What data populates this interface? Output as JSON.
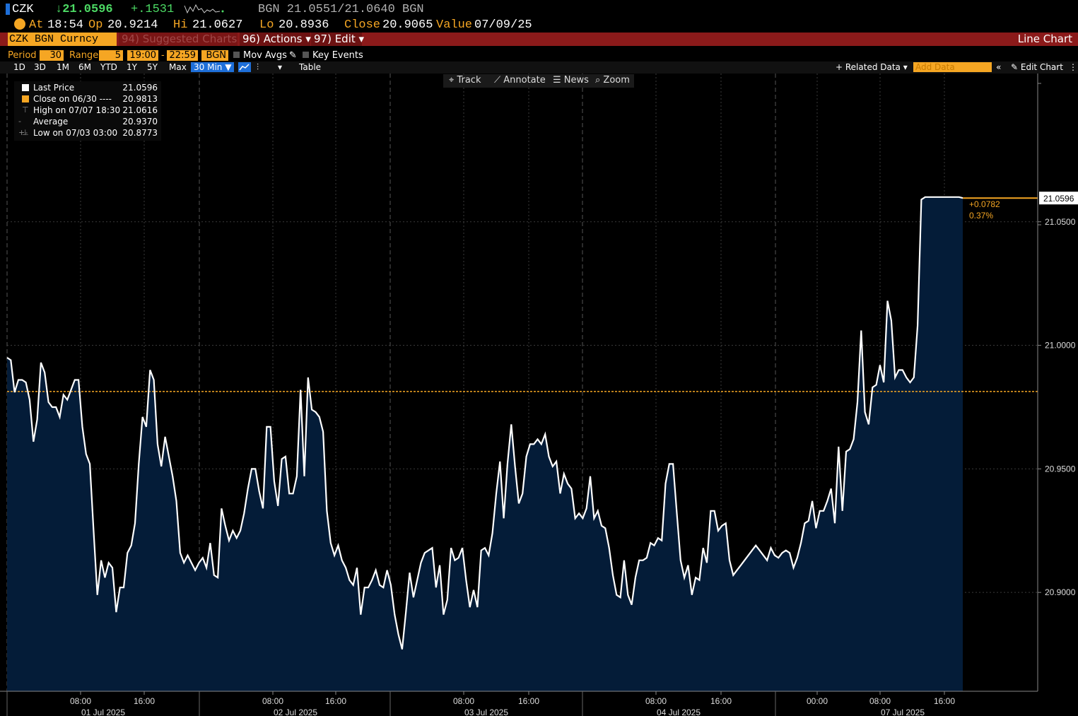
{
  "header": {
    "ticker": "CZK",
    "last_price": "↓21.0596",
    "change": "+.1531",
    "bid_ask": "BGN 21.0551/21.0640 BGN",
    "at_label": "At",
    "time": "18:54",
    "op_label": "Op",
    "open": "20.9214",
    "hi_label": "Hi",
    "high": "21.0627",
    "lo_label": "Lo",
    "low": "20.8936",
    "close_label": "Close",
    "close": "20.9065",
    "value_label": "Value",
    "value_date": "07/09/25"
  },
  "menubar": {
    "security": "CZK BGN Curncy",
    "suggested": "94) Suggested Charts ▾",
    "actions": "96) Actions ▾",
    "edit": "97) Edit ▾",
    "chart_type": "Line Chart"
  },
  "period_row": {
    "period_label": "Period",
    "period_value": "30",
    "range_label": "Range",
    "range_value": "5",
    "range_start": "19:00",
    "range_sep": "-",
    "range_end": "22:59",
    "source": "BGN",
    "mov_avgs": "Mov Avgs",
    "key_events": "Key Events"
  },
  "toolbar": {
    "timeframes": [
      "1D",
      "3D",
      "1M",
      "6M",
      "YTD",
      "1Y",
      "5Y",
      "Max"
    ],
    "interval": "30 Min ▼",
    "table": "Table",
    "related_data": "+ Related Data ▾",
    "add_data_placeholder": "Add Data",
    "edit_chart": "Edit Chart"
  },
  "chart_tools": [
    "Track",
    "Annotate",
    "News",
    "Zoom"
  ],
  "legend": [
    {
      "label": "Last Price",
      "value": "21.0596",
      "color": "#ffffff"
    },
    {
      "label": "Close on 06/30 ----",
      "value": "20.9813",
      "color": "#f5a623"
    },
    {
      "label": "High on 07/07 18:30",
      "value": "21.0616",
      "color": "#888888"
    },
    {
      "label": "Average",
      "value": "20.9370",
      "color": "#888888"
    },
    {
      "label": "Low on 07/03 03:00",
      "value": "20.8773",
      "color": "#888888"
    }
  ],
  "colors": {
    "accent": "#f5a623",
    "fill": "#041c38",
    "line": "#ffffff",
    "menubar": "#8b1a1a"
  },
  "chart_data": {
    "type": "area",
    "ylim": [
      20.86,
      21.11
    ],
    "yticks": [
      20.9,
      20.95,
      21.0,
      21.05
    ],
    "ytick_labels": [
      "20.9000",
      "20.9500",
      "21.0000",
      "21.0500"
    ],
    "xtick_labels": [
      {
        "time": "08:00",
        "date": "01 Jul 2025"
      },
      {
        "time": "16:00",
        "date": ""
      },
      {
        "time": "08:00",
        "date": "02 Jul 2025"
      },
      {
        "time": "16:00",
        "date": ""
      },
      {
        "time": "08:00",
        "date": "03 Jul 2025"
      },
      {
        "time": "16:00",
        "date": ""
      },
      {
        "time": "08:00",
        "date": "04 Jul 2025"
      },
      {
        "time": "16:00",
        "date": ""
      },
      {
        "time": "00:00",
        "date": ""
      },
      {
        "time": "08:00",
        "date": "07 Jul 2025"
      },
      {
        "time": "16:00",
        "date": ""
      }
    ],
    "reference_close": 20.9813,
    "last_value": 21.0596,
    "last_label": "21.0596",
    "change_label": "+0.0782",
    "change_pct_label": "0.37%",
    "values": [
      20.995,
      20.994,
      20.981,
      20.986,
      20.986,
      20.985,
      20.978,
      20.961,
      20.97,
      20.993,
      20.989,
      20.977,
      20.975,
      20.975,
      20.971,
      20.98,
      20.978,
      20.982,
      20.986,
      20.986,
      20.967,
      20.956,
      20.952,
      20.925,
      20.899,
      20.913,
      20.906,
      20.912,
      20.91,
      20.892,
      20.902,
      20.902,
      20.916,
      20.919,
      20.928,
      20.952,
      20.971,
      20.967,
      20.99,
      20.986,
      20.96,
      20.951,
      20.963,
      20.955,
      20.947,
      20.937,
      20.916,
      20.912,
      20.915,
      20.912,
      20.909,
      20.912,
      20.914,
      20.91,
      20.92,
      20.907,
      20.906,
      20.934,
      20.927,
      20.921,
      20.925,
      20.922,
      20.925,
      20.932,
      20.942,
      20.95,
      20.95,
      20.941,
      20.934,
      20.967,
      20.967,
      20.945,
      20.935,
      20.954,
      20.955,
      20.94,
      20.94,
      20.947,
      20.982,
      20.947,
      20.987,
      20.974,
      20.973,
      20.971,
      20.965,
      20.933,
      20.92,
      20.915,
      20.919,
      20.913,
      20.91,
      20.905,
      20.903,
      20.91,
      20.891,
      20.902,
      20.902,
      20.905,
      20.909,
      20.903,
      20.902,
      20.909,
      20.903,
      20.891,
      20.883,
      20.877,
      20.892,
      20.908,
      20.898,
      20.905,
      20.912,
      20.916,
      20.917,
      20.918,
      20.902,
      20.911,
      20.891,
      20.897,
      20.918,
      20.913,
      20.914,
      20.918,
      20.905,
      20.894,
      20.901,
      20.894,
      20.917,
      20.918,
      20.915,
      20.924,
      20.94,
      20.953,
      20.93,
      20.952,
      20.968,
      20.951,
      20.936,
      20.94,
      20.955,
      20.96,
      20.96,
      20.962,
      20.96,
      20.964,
      20.955,
      20.951,
      20.953,
      20.94,
      20.948,
      20.944,
      20.942,
      20.93,
      20.932,
      20.93,
      20.934,
      20.947,
      20.93,
      20.933,
      20.927,
      20.926,
      20.918,
      20.907,
      20.899,
      20.898,
      20.913,
      20.899,
      20.895,
      20.906,
      20.913,
      20.913,
      20.914,
      20.92,
      20.919,
      20.922,
      20.921,
      20.944,
      20.952,
      20.952,
      20.932,
      20.913,
      20.906,
      20.911,
      20.899,
      20.906,
      20.905,
      20.918,
      20.912,
      20.933,
      20.933,
      20.925,
      20.927,
      20.928,
      20.913,
      20.907,
      20.909,
      20.911,
      20.913,
      20.915,
      20.917,
      20.919,
      20.917,
      20.915,
      20.913,
      20.918,
      20.915,
      20.914,
      20.916,
      20.917,
      20.916,
      20.91,
      20.914,
      20.92,
      20.928,
      20.929,
      20.937,
      20.926,
      20.933,
      20.933,
      20.937,
      20.942,
      20.928,
      20.959,
      20.933,
      20.957,
      20.958,
      20.962,
      20.977,
      21.006,
      20.973,
      20.968,
      20.983,
      20.984,
      20.992,
      20.985,
      21.018,
      21.01,
      20.987,
      20.99,
      20.99,
      20.987,
      20.985,
      20.987,
      21.008,
      21.059,
      21.06,
      21.06,
      21.06,
      21.06,
      21.06,
      21.06,
      21.06,
      21.06,
      21.06,
      21.06,
      21.0596
    ]
  }
}
